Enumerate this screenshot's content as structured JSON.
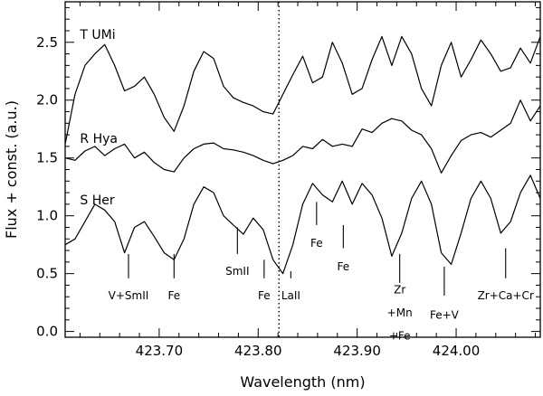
{
  "chart_data": {
    "type": "line",
    "xlabel": "Wavelength (nm)",
    "ylabel": "Flux + const. (a.u.)",
    "xlim": [
      423.605,
      424.085
    ],
    "ylim": [
      -0.05,
      2.85
    ],
    "x_ticks": [
      {
        "value": 423.7,
        "label": "423.70"
      },
      {
        "value": 423.8,
        "label": "423.80"
      },
      {
        "value": 423.9,
        "label": "423.90"
      },
      {
        "value": 424.0,
        "label": "424.00"
      }
    ],
    "y_ticks": [
      {
        "value": 0.0,
        "label": "0.0"
      },
      {
        "value": 0.5,
        "label": "0.5"
      },
      {
        "value": 1.0,
        "label": "1.0"
      },
      {
        "value": 1.5,
        "label": "1.5"
      },
      {
        "value": 2.0,
        "label": "2.0"
      },
      {
        "value": 2.5,
        "label": "2.5"
      }
    ],
    "reference_line_x": 423.821,
    "series": [
      {
        "name": "T UMi",
        "label_at": [
          423.62,
          2.53
        ],
        "x": [
          423.605,
          423.615,
          423.625,
          423.635,
          423.645,
          423.655,
          423.665,
          423.675,
          423.685,
          423.695,
          423.705,
          423.715,
          423.725,
          423.735,
          423.745,
          423.755,
          423.765,
          423.775,
          423.785,
          423.795,
          423.805,
          423.815,
          423.825,
          423.835,
          423.845,
          423.855,
          423.865,
          423.875,
          423.885,
          423.895,
          423.905,
          423.915,
          423.925,
          423.935,
          423.945,
          423.955,
          423.965,
          423.975,
          423.985,
          423.995,
          424.005,
          424.015,
          424.025,
          424.035,
          424.045,
          424.055,
          424.065,
          424.075,
          424.085
        ],
        "values": [
          1.62,
          2.05,
          2.3,
          2.4,
          2.48,
          2.3,
          2.08,
          2.12,
          2.2,
          2.05,
          1.85,
          1.73,
          1.95,
          2.25,
          2.42,
          2.36,
          2.12,
          2.02,
          1.98,
          1.95,
          1.9,
          1.88,
          2.05,
          2.22,
          2.38,
          2.15,
          2.2,
          2.5,
          2.32,
          2.05,
          2.1,
          2.35,
          2.55,
          2.3,
          2.55,
          2.4,
          2.1,
          1.95,
          2.3,
          2.5,
          2.2,
          2.35,
          2.52,
          2.4,
          2.25,
          2.28,
          2.45,
          2.32,
          2.55
        ]
      },
      {
        "name": "R Hya",
        "label_at": [
          423.62,
          1.63
        ],
        "x": [
          423.605,
          423.615,
          423.625,
          423.635,
          423.645,
          423.655,
          423.665,
          423.675,
          423.685,
          423.695,
          423.705,
          423.715,
          423.725,
          423.735,
          423.745,
          423.755,
          423.765,
          423.775,
          423.785,
          423.795,
          423.805,
          423.815,
          423.825,
          423.835,
          423.845,
          423.855,
          423.865,
          423.875,
          423.885,
          423.895,
          423.905,
          423.915,
          423.925,
          423.935,
          423.945,
          423.955,
          423.965,
          423.975,
          423.985,
          423.995,
          424.005,
          424.015,
          424.025,
          424.035,
          424.045,
          424.055,
          424.065,
          424.075,
          424.085
        ],
        "values": [
          1.5,
          1.48,
          1.56,
          1.6,
          1.52,
          1.58,
          1.62,
          1.5,
          1.55,
          1.46,
          1.4,
          1.38,
          1.5,
          1.58,
          1.62,
          1.63,
          1.58,
          1.57,
          1.55,
          1.52,
          1.48,
          1.45,
          1.48,
          1.52,
          1.6,
          1.58,
          1.66,
          1.6,
          1.62,
          1.6,
          1.75,
          1.72,
          1.8,
          1.84,
          1.82,
          1.74,
          1.7,
          1.58,
          1.37,
          1.52,
          1.65,
          1.7,
          1.72,
          1.68,
          1.74,
          1.8,
          2.0,
          1.82,
          1.95
        ]
      },
      {
        "name": "S Her",
        "label_at": [
          423.62,
          1.1
        ],
        "x": [
          423.605,
          423.615,
          423.625,
          423.635,
          423.645,
          423.655,
          423.665,
          423.675,
          423.685,
          423.695,
          423.705,
          423.715,
          423.725,
          423.735,
          423.745,
          423.755,
          423.765,
          423.775,
          423.785,
          423.795,
          423.805,
          423.815,
          423.825,
          423.835,
          423.845,
          423.855,
          423.865,
          423.875,
          423.885,
          423.895,
          423.905,
          423.915,
          423.925,
          423.935,
          423.945,
          423.955,
          423.965,
          423.975,
          423.985,
          423.995,
          424.005,
          424.015,
          424.025,
          424.035,
          424.045,
          424.055,
          424.065,
          424.075,
          424.085
        ],
        "values": [
          0.75,
          0.8,
          0.95,
          1.1,
          1.05,
          0.95,
          0.68,
          0.9,
          0.95,
          0.82,
          0.68,
          0.62,
          0.8,
          1.1,
          1.25,
          1.2,
          1.0,
          0.92,
          0.84,
          0.98,
          0.88,
          0.62,
          0.5,
          0.75,
          1.1,
          1.28,
          1.18,
          1.12,
          1.3,
          1.1,
          1.28,
          1.18,
          0.98,
          0.65,
          0.85,
          1.15,
          1.3,
          1.1,
          0.68,
          0.58,
          0.85,
          1.15,
          1.3,
          1.15,
          0.85,
          0.95,
          1.2,
          1.35,
          1.15
        ]
      }
    ],
    "line_ids": [
      {
        "label": "V+SmII",
        "x": 423.669,
        "tick_top": 0.67,
        "tick_bottom": 0.46,
        "text_y": [
          0.28
        ],
        "anchor": "middle"
      },
      {
        "label": "Fe",
        "x": 423.715,
        "tick_top": 0.67,
        "tick_bottom": 0.46,
        "text_y": [
          0.28
        ],
        "anchor": "middle"
      },
      {
        "label": "SmII",
        "x": 423.779,
        "tick_top": 0.9,
        "tick_bottom": 0.67,
        "text_y": [
          0.49
        ],
        "anchor": "middle"
      },
      {
        "label": "Fe",
        "x": 423.806,
        "tick_top": 0.62,
        "tick_bottom": 0.46,
        "text_y": [
          0.28
        ],
        "anchor": "middle"
      },
      {
        "label": "LaII",
        "x": 423.833,
        "tick_top": 0.52,
        "tick_bottom": 0.46,
        "text_y": [
          0.28
        ],
        "anchor": "middle"
      },
      {
        "label": "Fe",
        "x": 423.859,
        "tick_top": 1.12,
        "tick_bottom": 0.92,
        "text_y": [
          0.73
        ],
        "anchor": "middle"
      },
      {
        "label": "Fe",
        "x": 423.886,
        "tick_top": 0.92,
        "tick_bottom": 0.72,
        "text_y": [
          0.53
        ],
        "anchor": "middle"
      },
      {
        "label": "Zr",
        "x": 423.943,
        "tick_top": 0.67,
        "tick_bottom": 0.42,
        "text_y": [
          0.33
        ],
        "anchor": "middle"
      },
      {
        "label": "+Mn",
        "x": 423.943,
        "tick_top": null,
        "tick_bottom": null,
        "text_y": [
          0.13
        ],
        "anchor": "middle"
      },
      {
        "label": "+Fe",
        "x": 423.943,
        "tick_top": null,
        "tick_bottom": null,
        "text_y": [
          -0.07
        ],
        "anchor": "middle"
      },
      {
        "label": "Fe+V",
        "x": 423.988,
        "tick_top": 0.56,
        "tick_bottom": 0.31,
        "text_y": [
          0.11
        ],
        "anchor": "middle"
      },
      {
        "label": "Zr+Ca+Cr",
        "x": 424.05,
        "tick_top": 0.72,
        "tick_bottom": 0.46,
        "text_y": [
          0.28
        ],
        "anchor": "middle"
      }
    ]
  }
}
